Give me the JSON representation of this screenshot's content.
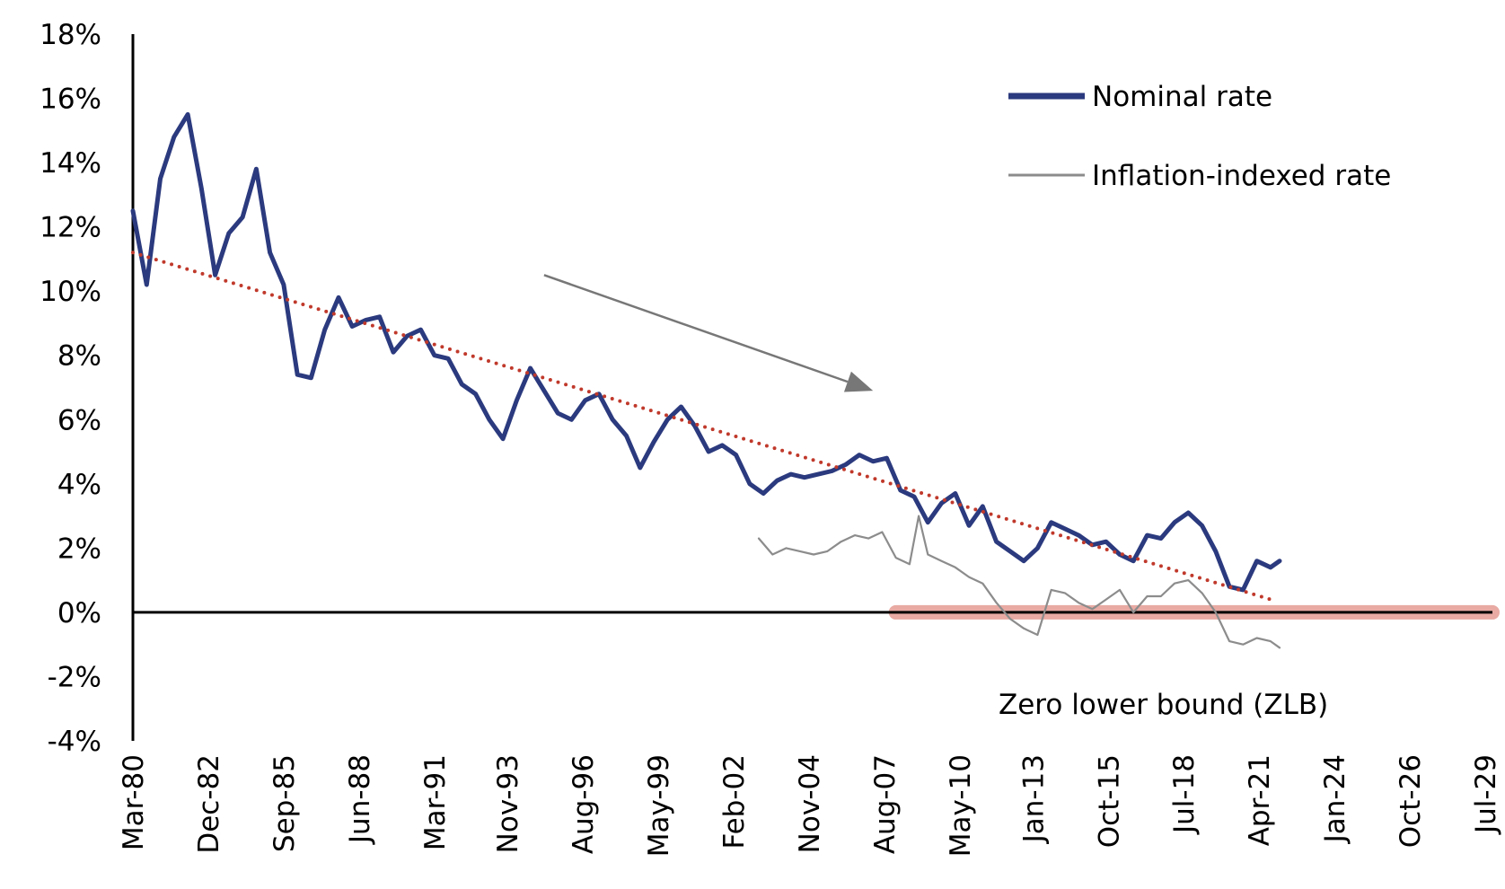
{
  "chart_data": {
    "type": "line",
    "title": "",
    "xlabel": "",
    "ylabel": "",
    "ylim": [
      -4,
      18
    ],
    "xlim": [
      "1980-03",
      "2029-07"
    ],
    "y_ticks": [
      "18%",
      "16%",
      "14%",
      "12%",
      "10%",
      "8%",
      "6%",
      "4%",
      "2%",
      "0%",
      "-2%",
      "-4%"
    ],
    "y_tick_values": [
      18,
      16,
      14,
      12,
      10,
      8,
      6,
      4,
      2,
      0,
      -2,
      -4
    ],
    "x_ticks": [
      "Mar-80",
      "Dec-82",
      "Sep-85",
      "Jun-88",
      "Mar-91",
      "Nov-93",
      "Aug-96",
      "May-99",
      "Feb-02",
      "Nov-04",
      "Aug-07",
      "May-10",
      "Jan-13",
      "Oct-15",
      "Jul-18",
      "Apr-21",
      "Jan-24",
      "Oct-26",
      "Jul-29"
    ],
    "x_tick_dates": [
      "1980-03",
      "1982-12",
      "1985-09",
      "1988-06",
      "1991-03",
      "1993-11",
      "1996-08",
      "1999-05",
      "2002-02",
      "2004-11",
      "2007-08",
      "2010-05",
      "2013-01",
      "2015-10",
      "2018-07",
      "2021-04",
      "2024-01",
      "2026-10",
      "2029-07"
    ],
    "grid": false,
    "legend_position": "top-right",
    "series": [
      {
        "name": "Nominal rate",
        "color": "#2b3a7e",
        "x": [
          "1980-03",
          "1980-09",
          "1981-03",
          "1981-09",
          "1982-03",
          "1982-09",
          "1983-03",
          "1983-09",
          "1984-03",
          "1984-09",
          "1985-03",
          "1985-09",
          "1986-03",
          "1986-09",
          "1987-03",
          "1987-09",
          "1988-03",
          "1988-09",
          "1989-03",
          "1989-09",
          "1990-03",
          "1990-09",
          "1991-03",
          "1991-09",
          "1992-03",
          "1992-09",
          "1993-03",
          "1993-09",
          "1994-03",
          "1994-09",
          "1995-03",
          "1995-09",
          "1996-03",
          "1996-09",
          "1997-03",
          "1997-09",
          "1998-03",
          "1998-09",
          "1999-03",
          "1999-09",
          "2000-03",
          "2000-09",
          "2001-03",
          "2001-09",
          "2002-03",
          "2002-09",
          "2003-03",
          "2003-09",
          "2004-03",
          "2004-09",
          "2005-03",
          "2005-09",
          "2006-03",
          "2006-09",
          "2007-03",
          "2007-09",
          "2008-03",
          "2008-09",
          "2009-03",
          "2009-09",
          "2010-03",
          "2010-09",
          "2011-03",
          "2011-09",
          "2012-03",
          "2012-09",
          "2013-03",
          "2013-09",
          "2014-03",
          "2014-09",
          "2015-03",
          "2015-09",
          "2016-03",
          "2016-09",
          "2017-03",
          "2017-09",
          "2018-03",
          "2018-09",
          "2019-03",
          "2019-09",
          "2020-03",
          "2020-09",
          "2021-03",
          "2021-09",
          "2022-01"
        ],
        "values": [
          12.5,
          10.2,
          13.5,
          14.8,
          15.5,
          13.2,
          10.5,
          11.8,
          12.3,
          13.8,
          11.2,
          10.2,
          7.4,
          7.3,
          8.8,
          9.8,
          8.9,
          9.1,
          9.2,
          8.1,
          8.6,
          8.8,
          8.0,
          7.9,
          7.1,
          6.8,
          6.0,
          5.4,
          6.6,
          7.6,
          6.9,
          6.2,
          6.0,
          6.6,
          6.8,
          6.0,
          5.5,
          4.5,
          5.3,
          6.0,
          6.4,
          5.8,
          5.0,
          5.2,
          4.9,
          4.0,
          3.7,
          4.1,
          4.3,
          4.2,
          4.3,
          4.4,
          4.6,
          4.9,
          4.7,
          4.8,
          3.8,
          3.6,
          2.8,
          3.4,
          3.7,
          2.7,
          3.3,
          2.2,
          1.9,
          1.6,
          2.0,
          2.8,
          2.6,
          2.4,
          2.1,
          2.2,
          1.8,
          1.6,
          2.4,
          2.3,
          2.8,
          3.1,
          2.7,
          1.9,
          0.8,
          0.7,
          1.6,
          1.4,
          1.6
        ]
      },
      {
        "name": "Inflation-indexed rate",
        "color": "#8c8c8c",
        "x": [
          "2003-01",
          "2003-07",
          "2004-01",
          "2004-07",
          "2005-01",
          "2005-07",
          "2006-01",
          "2006-07",
          "2007-01",
          "2007-07",
          "2008-01",
          "2008-07",
          "2008-11",
          "2009-03",
          "2009-09",
          "2010-03",
          "2010-09",
          "2011-03",
          "2011-09",
          "2012-03",
          "2012-09",
          "2013-03",
          "2013-09",
          "2014-03",
          "2014-09",
          "2015-03",
          "2015-09",
          "2016-03",
          "2016-09",
          "2017-03",
          "2017-09",
          "2018-03",
          "2018-09",
          "2019-03",
          "2019-09",
          "2020-03",
          "2020-09",
          "2021-03",
          "2021-09",
          "2022-01"
        ],
        "values": [
          2.3,
          1.8,
          2.0,
          1.9,
          1.8,
          1.9,
          2.2,
          2.4,
          2.3,
          2.5,
          1.7,
          1.5,
          3.0,
          1.8,
          1.6,
          1.4,
          1.1,
          0.9,
          0.3,
          -0.2,
          -0.5,
          -0.7,
          0.7,
          0.6,
          0.3,
          0.1,
          0.4,
          0.7,
          0.0,
          0.5,
          0.5,
          0.9,
          1.0,
          0.6,
          0.0,
          -0.9,
          -1.0,
          -0.8,
          -0.9,
          -1.1
        ]
      }
    ],
    "trendline": {
      "style": "dotted",
      "color": "#c0392b",
      "x": [
        "1980-03",
        "2021-09"
      ],
      "values": [
        11.2,
        0.4
      ]
    },
    "arrow": {
      "color": "#777777",
      "from": {
        "x": "1995-03",
        "y": 10.5
      },
      "to": {
        "x": "2007-03",
        "y": 6.9
      }
    },
    "zlb_band": {
      "color": "#e8aaa3",
      "x_start": "2008-01",
      "x_end": "2029-07",
      "value": 0
    },
    "annotations": [
      "Zero lower bound (ZLB)"
    ]
  }
}
